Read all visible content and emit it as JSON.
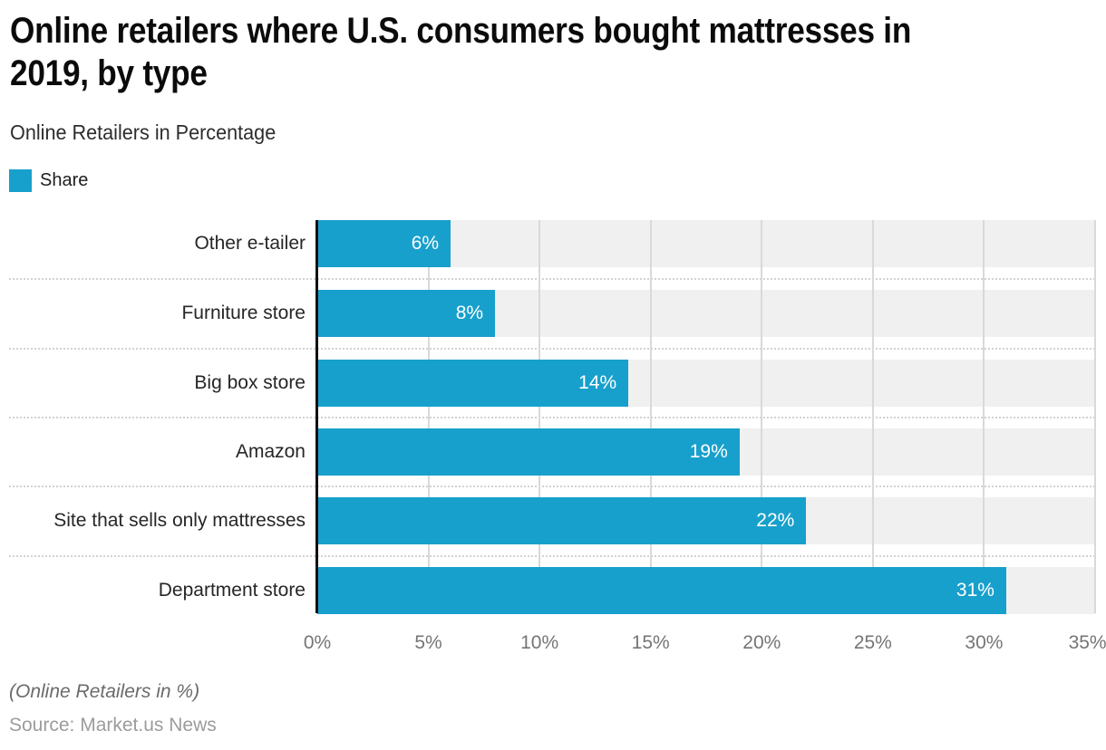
{
  "title": {
    "line1": "Online retailers where U.S. consumers bought mattresses in",
    "line2": "2019, by type"
  },
  "subtitle": "Online Retailers in Percentage",
  "legend": {
    "label": "Share",
    "color": "#18a0cc"
  },
  "chart_data": {
    "type": "bar",
    "orientation": "horizontal",
    "title": "Online retailers where U.S. consumers bought mattresses in 2019, by type",
    "subtitle": "Online Retailers in Percentage",
    "series_name": "Share",
    "categories": [
      "Other e-tailer",
      "Furniture store",
      "Big box store",
      "Amazon",
      "Site that sells only mattresses",
      "Department store"
    ],
    "values": [
      6,
      8,
      14,
      19,
      22,
      31
    ],
    "value_labels": [
      "6%",
      "8%",
      "14%",
      "19%",
      "22%",
      "31%"
    ],
    "xlim": [
      0,
      35
    ],
    "x_tick_labels": [
      "0%",
      "5%",
      "10%",
      "15%",
      "20%",
      "25%",
      "30%",
      "35%"
    ],
    "grid": true,
    "legend_position": "top-left",
    "bar_color": "#18a0cc",
    "row_band_color": "#f0f0f0",
    "gridline_color": "#d9d9d9",
    "separator_color": "#d2d2d2",
    "axis_color": "#111111"
  },
  "footer": {
    "note": "(Online Retailers in %)",
    "source": "Source: Market.us News"
  }
}
